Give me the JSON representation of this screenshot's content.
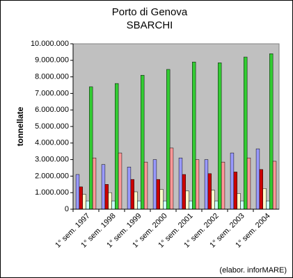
{
  "chart_data": {
    "type": "bar",
    "title": "Porto di Genova",
    "subtitle": "SBARCHI",
    "y_label": "tonnellate",
    "annotation": "(elabor. inforMARE)",
    "categories": [
      "1° sem. 1997",
      "1° sem. 1998",
      "1° sem. 1999",
      "1° sem. 2000",
      "1° sem. 2001",
      "1° sem. 2002",
      "1° sem. 2003",
      "1° sem. 2004"
    ],
    "series": [
      {
        "color": "#9999ff",
        "values": [
          2100000,
          2700000,
          2550000,
          3000000,
          3100000,
          3000000,
          3400000,
          3650000
        ]
      },
      {
        "color": "#cc0000",
        "values": [
          1350000,
          1500000,
          1800000,
          1800000,
          2100000,
          2150000,
          2250000,
          2400000
        ]
      },
      {
        "color": "#ffffcc",
        "values": [
          900000,
          1000000,
          1050000,
          1200000,
          1100000,
          1150000,
          950000,
          1250000
        ]
      },
      {
        "color": "#ccffff",
        "values": [
          500000,
          500000,
          500000,
          500000,
          500000,
          500000,
          500000,
          500000
        ]
      },
      {
        "color": "#33cc33",
        "values": [
          7400000,
          7600000,
          8100000,
          8450000,
          8900000,
          8850000,
          9200000,
          9400000
        ]
      },
      {
        "color": "#ff9999",
        "values": [
          3100000,
          3400000,
          2850000,
          3700000,
          3000000,
          2850000,
          3100000,
          2900000
        ]
      }
    ],
    "ylim": [
      0,
      10000000
    ],
    "yticks": [
      0,
      {
        "value": 1000000,
        "label": "1.000.000"
      },
      {
        "value": 2000000,
        "label": "2.000.000"
      },
      {
        "value": 3000000,
        "label": "3.000.000"
      },
      {
        "value": 4000000,
        "label": "4.000.000"
      },
      {
        "value": 5000000,
        "label": "5.000.000"
      },
      {
        "value": 6000000,
        "label": "6.000.000"
      },
      {
        "value": 7000000,
        "label": "7.000.000"
      },
      {
        "value": 8000000,
        "label": "8.000.000"
      },
      {
        "value": 9000000,
        "label": "9.000.000"
      },
      {
        "value": 10000000,
        "label": "10.000.000"
      }
    ],
    "grid": false,
    "plot_background": "#c0c0c0"
  }
}
